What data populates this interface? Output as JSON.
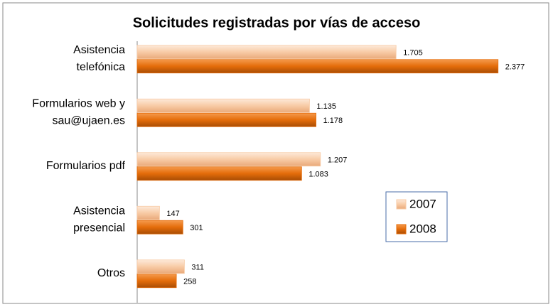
{
  "chart_data": {
    "type": "bar",
    "orientation": "horizontal",
    "title": "Solicitudes registradas por vías de acceso",
    "categories": [
      "Asistencia\ntelefónica",
      "Formularios web y\nsau@ujaen.es",
      "Formularios pdf",
      "Asistencia\npresencial",
      "Otros"
    ],
    "series": [
      {
        "name": "2007",
        "color": "#f8cba6",
        "values": [
          1705,
          1135,
          1207,
          147,
          311
        ],
        "value_labels": [
          "1.705",
          "1.135",
          "1.207",
          "147",
          "311"
        ]
      },
      {
        "name": "2008",
        "color": "#e46c0a",
        "values": [
          2377,
          1178,
          1083,
          301,
          258
        ],
        "value_labels": [
          "2.377",
          "1.178",
          "1.083",
          "301",
          "258"
        ]
      }
    ],
    "xlim": [
      0,
      2500
    ],
    "legend": "right"
  }
}
